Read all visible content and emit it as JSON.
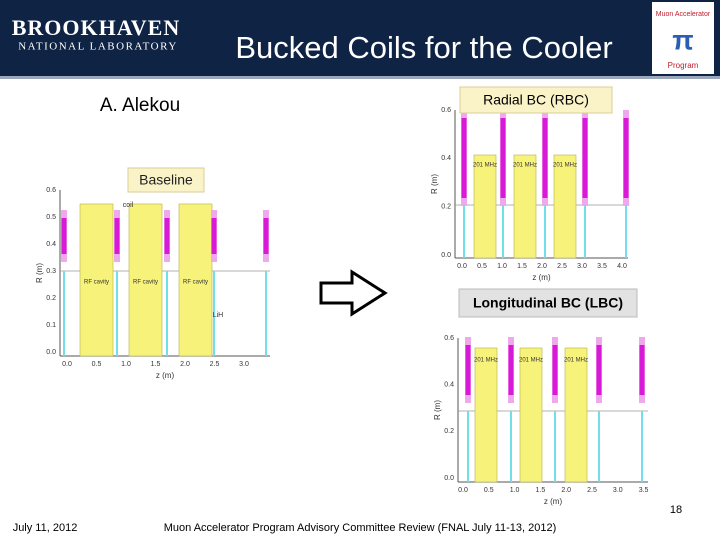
{
  "header": {
    "logo_top": "BROOKHAVEN",
    "logo_bottom": "NATIONAL LABORATORY",
    "title": "Bucked Coils for the Cooler",
    "program_logo": {
      "top": "Muon Accelerator",
      "bottom": "Program"
    }
  },
  "author": "A. Alekou",
  "baseline": {
    "label": "Baseline",
    "ylabel": "R (m)",
    "xlabel": "z (m)",
    "yticks": [
      "0.6",
      "0.5",
      "0.4",
      "0.3",
      "0.2",
      "0.1",
      "0.0"
    ],
    "xticks": [
      "0.0",
      "0.5",
      "1.0",
      "1.5",
      "2.0",
      "2.5",
      "3.0"
    ],
    "coil_label": "coil",
    "cavity_labels": [
      "RF cavity",
      "RF cavity",
      "RF cavity"
    ],
    "absorber_label": "LiH"
  },
  "rbc": {
    "label": "Radial BC (RBC)",
    "ylabel": "R (m)",
    "xlabel": "z (m)",
    "yticks": [
      "0.6",
      "0.4",
      "0.2",
      "0.0"
    ],
    "xticks": [
      "0.0",
      "0.5",
      "1.0",
      "1.5",
      "2.0",
      "2.5",
      "3.0",
      "3.5",
      "4.0"
    ],
    "cavity_labels": [
      "201 MHz",
      "201 MHz",
      "201 MHz"
    ]
  },
  "lbc": {
    "label": "Longitudinal BC (LBC)",
    "ylabel": "R (m)",
    "xlabel": "z (m)",
    "yticks": [
      "0.6",
      "0.4",
      "0.2",
      "0.0"
    ],
    "xticks": [
      "0.0",
      "0.5",
      "1.0",
      "1.5",
      "2.0",
      "2.5",
      "3.0",
      "3.5"
    ],
    "cavity_labels": [
      "201 MHz",
      "201 MHz",
      "201 MHz"
    ]
  },
  "footer": {
    "date": "July 11, 2012",
    "event": "Muon Accelerator Program Advisory Committee Review (FNAL July 11-13, 2012)",
    "page": "18"
  }
}
